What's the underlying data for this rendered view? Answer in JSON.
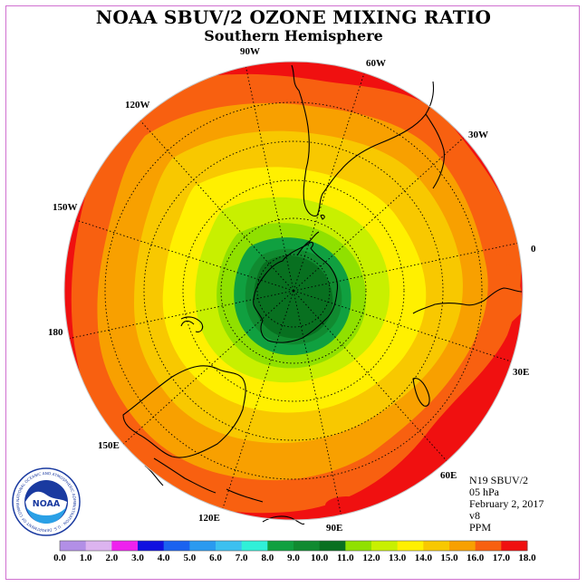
{
  "title": "NOAA SBUV/2 OZONE MIXING RATIO",
  "subtitle": "Southern Hemisphere",
  "info": {
    "satellite": "N19 SBUV/2",
    "level": "05 hPa",
    "date": "February 2, 2017",
    "version": "v8",
    "units": "PPM"
  },
  "logo": {
    "text": "NOAA",
    "ring_text": "NATIONAL OCEANIC AND ATMOSPHERIC ADMINISTRATION · U.S. DEPARTMENT OF COMMERCE"
  },
  "longitude_labels": [
    "0",
    "30W",
    "60W",
    "90W",
    "120W",
    "150W",
    "180",
    "150E",
    "120E",
    "90E",
    "60E",
    "30E"
  ],
  "colorbar": {
    "ticks": [
      "0.0",
      "1.0",
      "2.0",
      "3.0",
      "4.0",
      "5.0",
      "6.0",
      "7.0",
      "8.0",
      "9.0",
      "10.0",
      "11.0",
      "12.0",
      "13.0",
      "14.0",
      "15.0",
      "16.0",
      "17.0",
      "18.0"
    ],
    "colors": [
      "#b28fe6",
      "#dcb4ef",
      "#ee22ee",
      "#1010e0",
      "#1a62f0",
      "#2a9af0",
      "#3cc0f0",
      "#30f0d8",
      "#10a040",
      "#108a30",
      "#087020",
      "#90e000",
      "#c8f000",
      "#fff000",
      "#f8c800",
      "#f8a000",
      "#f86010",
      "#f01010",
      "#8c5030"
    ]
  },
  "color_legend": {
    "zone_colors": {
      "ge16": "#f01010",
      "15_16": "#f86010",
      "14_15": "#f8a000",
      "13_14": "#f8c800",
      "12_13": "#fff000",
      "11_12": "#c8f000",
      "10_11": "#90e000",
      "9_10": "#10a040",
      "8_9": "#108a30",
      "lt8": "#087020"
    }
  }
}
